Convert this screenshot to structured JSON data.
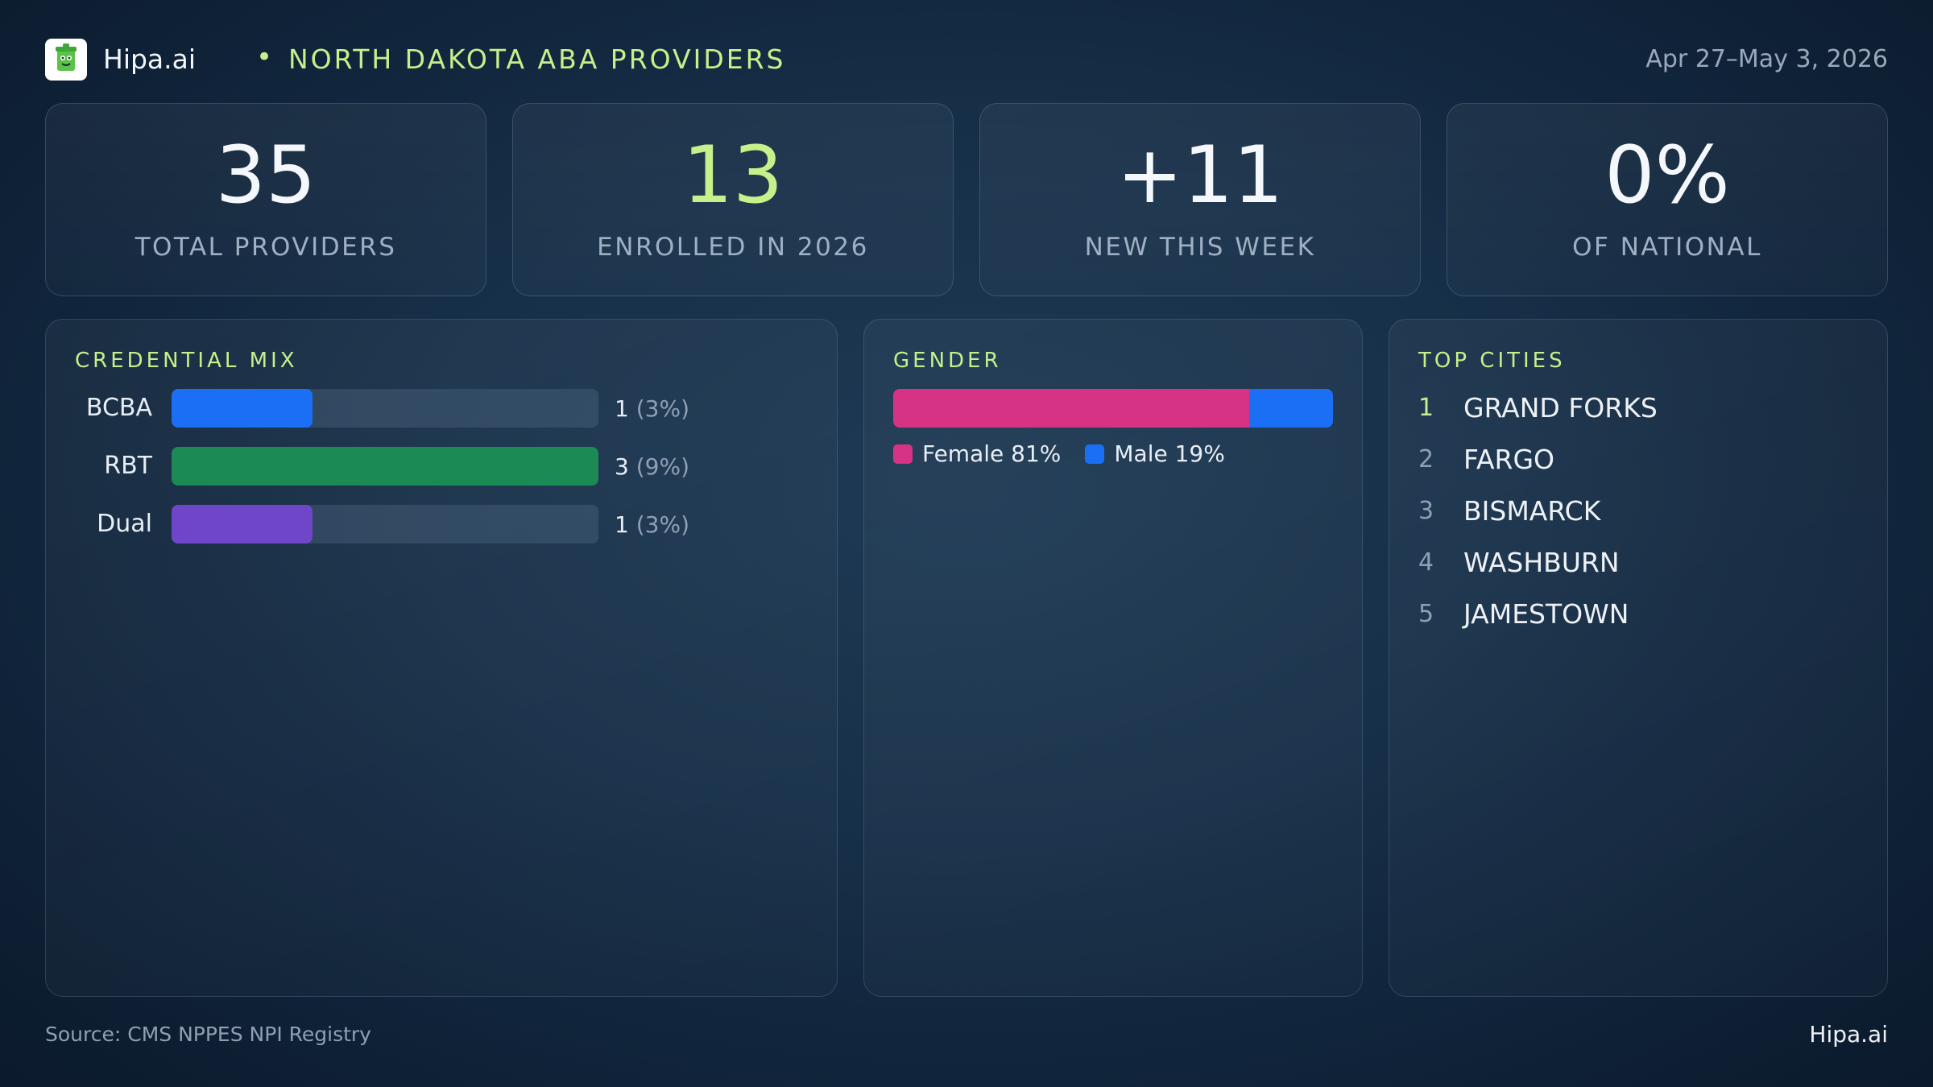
{
  "header": {
    "brand": "Hipa.ai",
    "separator": "•",
    "title": "NORTH DAKOTA ABA PROVIDERS",
    "date_range": "Apr 27–May 3, 2026",
    "logo_icon": "trash-can-mascot-icon"
  },
  "kpis": [
    {
      "value": "35",
      "label": "TOTAL PROVIDERS",
      "accent": false
    },
    {
      "value": "13",
      "label": "ENROLLED IN 2026",
      "accent": true
    },
    {
      "value": "+11",
      "label": "NEW THIS WEEK",
      "accent": false
    },
    {
      "value": "0%",
      "label": "OF NATIONAL",
      "accent": false
    }
  ],
  "credential_mix": {
    "title": "CREDENTIAL MIX",
    "items": [
      {
        "label": "BCBA",
        "count": "1",
        "pct": "(3%)",
        "fill": 0.33,
        "color": "#1a6ff5"
      },
      {
        "label": "RBT",
        "count": "3",
        "pct": "(9%)",
        "fill": 1.0,
        "color": "#1c8a55"
      },
      {
        "label": "Dual",
        "count": "1",
        "pct": "(3%)",
        "fill": 0.33,
        "color": "#6f46c8"
      }
    ]
  },
  "gender": {
    "title": "GENDER",
    "segments": [
      {
        "label": "Female 81%",
        "fraction": 0.81,
        "color": "#d63384"
      },
      {
        "label": "Male 19%",
        "fraction": 0.19,
        "color": "#1a6ff5"
      }
    ]
  },
  "top_cities": {
    "title": "TOP CITIES",
    "items": [
      {
        "rank": "1",
        "name": "GRAND FORKS"
      },
      {
        "rank": "2",
        "name": "FARGO"
      },
      {
        "rank": "3",
        "name": "BISMARCK"
      },
      {
        "rank": "4",
        "name": "WASHBURN"
      },
      {
        "rank": "5",
        "name": "JAMESTOWN"
      }
    ]
  },
  "footer": {
    "source": "Source: CMS NPPES NPI Registry",
    "brand": "Hipa.ai"
  },
  "colors": {
    "accent": "#c6f08a",
    "background": "#173049"
  }
}
